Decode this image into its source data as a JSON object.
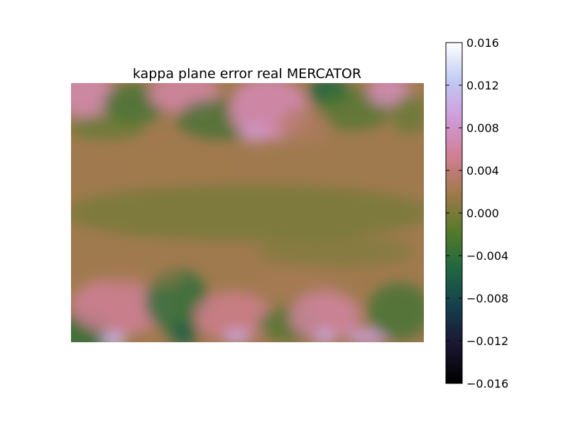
{
  "chart_data": {
    "type": "heatmap",
    "title": "kappa plane error real MERCATOR",
    "xlabel": "",
    "ylabel": "",
    "colormap": "cubehelix",
    "axes_visible": false,
    "grid": false,
    "colorbar": {
      "placement": "right",
      "range": [
        -0.016,
        0.016
      ],
      "ticks": [
        0.016,
        0.012,
        0.008,
        0.004,
        0.0,
        -0.004,
        -0.008,
        -0.012,
        -0.016
      ],
      "tick_labels": [
        "0.016",
        "0.012",
        "0.008",
        "0.004",
        "0.000",
        "−0.004",
        "−0.008",
        "−0.012",
        "−0.016"
      ],
      "colors": [
        "#000000",
        "#1a1530",
        "#163d4e",
        "#1f6642",
        "#547a29",
        "#a07949",
        "#d07e93",
        "#cf9cda",
        "#c1caf3",
        "#ffffff"
      ]
    },
    "value_estimates": {
      "background": 0.0005,
      "edge_rows_range": [
        -0.005,
        0.011
      ]
    }
  }
}
